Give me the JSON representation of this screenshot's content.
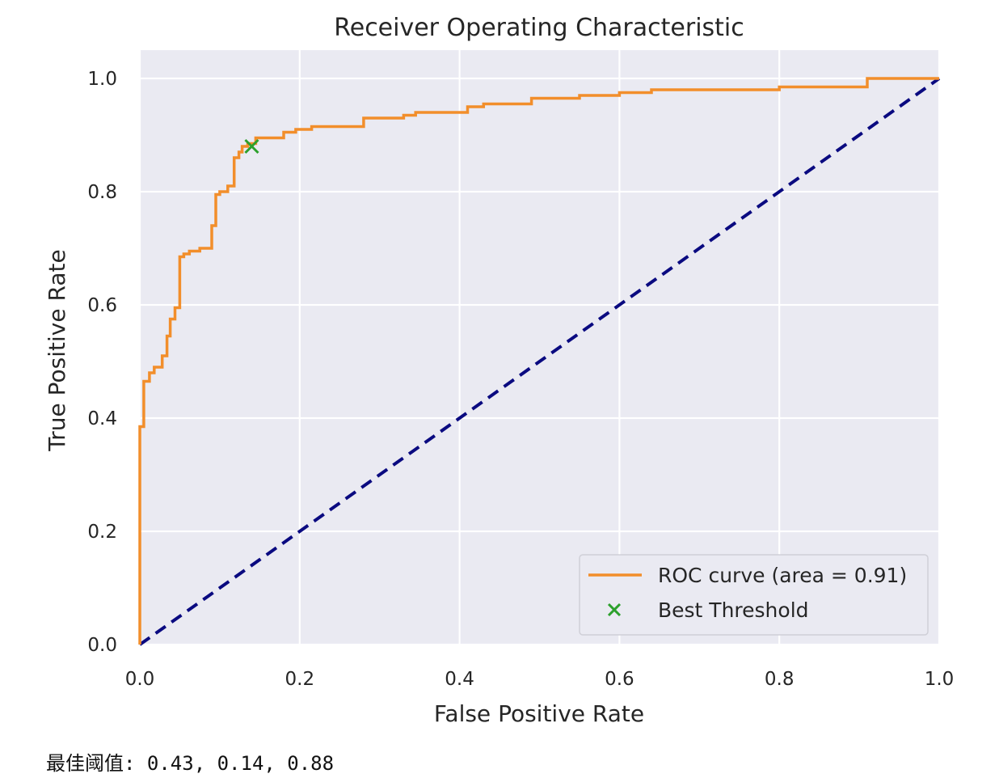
{
  "chart_data": {
    "type": "line",
    "title": "Receiver Operating Characteristic",
    "xlabel": "False Positive Rate",
    "ylabel": "True Positive Rate",
    "xlim": [
      0.0,
      1.0
    ],
    "ylim": [
      0.0,
      1.0
    ],
    "xticks": [
      "0.0",
      "0.2",
      "0.4",
      "0.6",
      "0.8",
      "1.0"
    ],
    "yticks": [
      "0.0",
      "0.2",
      "0.4",
      "0.6",
      "0.8",
      "1.0"
    ],
    "grid": true,
    "legend_position": "lower-right",
    "series": [
      {
        "name": "ROC curve (area = 0.91)",
        "style": "step",
        "color": "#f28e2b",
        "x": [
          0.0,
          0.0,
          0.005,
          0.005,
          0.012,
          0.012,
          0.018,
          0.018,
          0.028,
          0.028,
          0.034,
          0.034,
          0.038,
          0.038,
          0.044,
          0.044,
          0.05,
          0.05,
          0.055,
          0.055,
          0.062,
          0.062,
          0.075,
          0.075,
          0.09,
          0.09,
          0.095,
          0.095,
          0.1,
          0.1,
          0.11,
          0.11,
          0.118,
          0.118,
          0.124,
          0.124,
          0.128,
          0.128,
          0.135,
          0.135,
          0.145,
          0.145,
          0.18,
          0.18,
          0.195,
          0.195,
          0.215,
          0.215,
          0.28,
          0.28,
          0.33,
          0.33,
          0.345,
          0.345,
          0.41,
          0.41,
          0.43,
          0.43,
          0.49,
          0.49,
          0.55,
          0.55,
          0.6,
          0.6,
          0.64,
          0.64,
          0.8,
          0.8,
          0.91,
          0.91,
          1.0
        ],
        "y": [
          0.0,
          0.385,
          0.385,
          0.465,
          0.465,
          0.48,
          0.48,
          0.49,
          0.49,
          0.51,
          0.51,
          0.545,
          0.545,
          0.575,
          0.575,
          0.595,
          0.595,
          0.685,
          0.685,
          0.69,
          0.69,
          0.695,
          0.695,
          0.7,
          0.7,
          0.74,
          0.74,
          0.795,
          0.795,
          0.8,
          0.8,
          0.81,
          0.81,
          0.86,
          0.86,
          0.87,
          0.87,
          0.88,
          0.88,
          0.885,
          0.885,
          0.895,
          0.895,
          0.905,
          0.905,
          0.91,
          0.91,
          0.915,
          0.915,
          0.93,
          0.93,
          0.935,
          0.935,
          0.94,
          0.94,
          0.95,
          0.95,
          0.955,
          0.955,
          0.965,
          0.965,
          0.97,
          0.97,
          0.975,
          0.975,
          0.98,
          0.98,
          0.985,
          0.985,
          1.0,
          1.0
        ]
      },
      {
        "name": "",
        "style": "dashed",
        "color": "#0a0a80",
        "x": [
          0.0,
          1.0
        ],
        "y": [
          0.0,
          1.0
        ]
      },
      {
        "name": "Best Threshold",
        "style": "marker-x",
        "color": "#2ca02c",
        "x": [
          0.14
        ],
        "y": [
          0.88
        ]
      }
    ]
  },
  "output": {
    "text": "最佳阈值: 0.43, 0.14, 0.88"
  }
}
